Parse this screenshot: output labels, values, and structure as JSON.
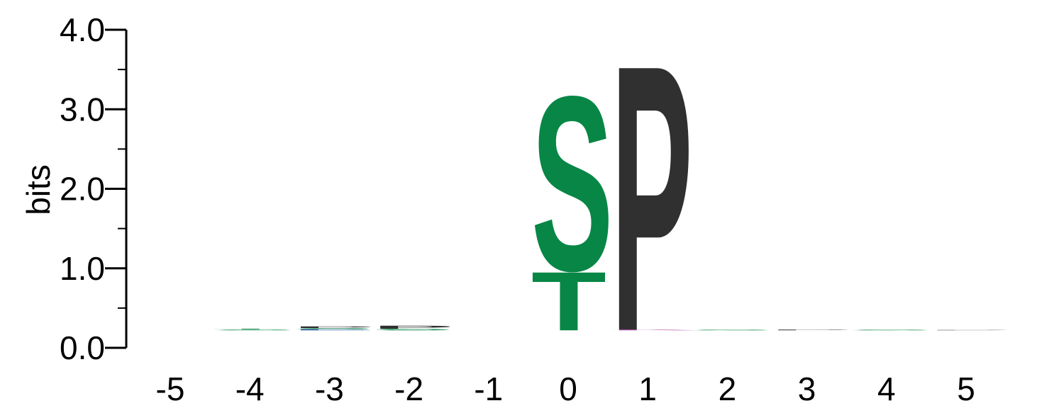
{
  "chart_data": {
    "type": "sequence-logo",
    "ylabel": "bits",
    "ylim": [
      0,
      4
    ],
    "yticks": [
      "0.0",
      "1.0",
      "2.0",
      "3.0",
      "4.0"
    ],
    "positions": [
      "-5",
      "-4",
      "-3",
      "-2",
      "-1",
      "0",
      "1",
      "2",
      "3",
      "4",
      "5"
    ],
    "columns": [
      {
        "position": "-5",
        "letters": []
      },
      {
        "position": "-4",
        "letters": [
          {
            "letter": "S",
            "bits": 0.01,
            "color": "#078646"
          },
          {
            "letter": "T",
            "bits": 0.01,
            "color": "#078646"
          }
        ]
      },
      {
        "position": "-3",
        "letters": [
          {
            "letter": "E",
            "bits": 0.015,
            "color": "#1f4fa0"
          },
          {
            "letter": "S",
            "bits": 0.015,
            "color": "#078646"
          },
          {
            "letter": "P",
            "bits": 0.02,
            "color": "#303030"
          }
        ]
      },
      {
        "position": "-2",
        "letters": [
          {
            "letter": "S",
            "bits": 0.02,
            "color": "#078646"
          },
          {
            "letter": "P",
            "bits": 0.04,
            "color": "#303030"
          }
        ]
      },
      {
        "position": "-1",
        "letters": []
      },
      {
        "position": "0",
        "letters": [
          {
            "letter": "T",
            "bits": 0.76,
            "color": "#078646"
          },
          {
            "letter": "S",
            "bits": 2.26,
            "color": "#078646"
          }
        ]
      },
      {
        "position": "1",
        "letters": [
          {
            "letter": "K",
            "bits": 0.01,
            "color": "#a0209a"
          },
          {
            "letter": "P",
            "bits": 3.44,
            "color": "#303030"
          }
        ]
      },
      {
        "position": "2",
        "letters": [
          {
            "letter": "S",
            "bits": 0.01,
            "color": "#078646"
          }
        ]
      },
      {
        "position": "3",
        "letters": [
          {
            "letter": "P",
            "bits": 0.01,
            "color": "#303030"
          }
        ]
      },
      {
        "position": "4",
        "letters": [
          {
            "letter": "S",
            "bits": 0.01,
            "color": "#078646"
          }
        ]
      },
      {
        "position": "5",
        "letters": [
          {
            "letter": "P",
            "bits": 0.005,
            "color": "#303030"
          }
        ]
      }
    ]
  }
}
